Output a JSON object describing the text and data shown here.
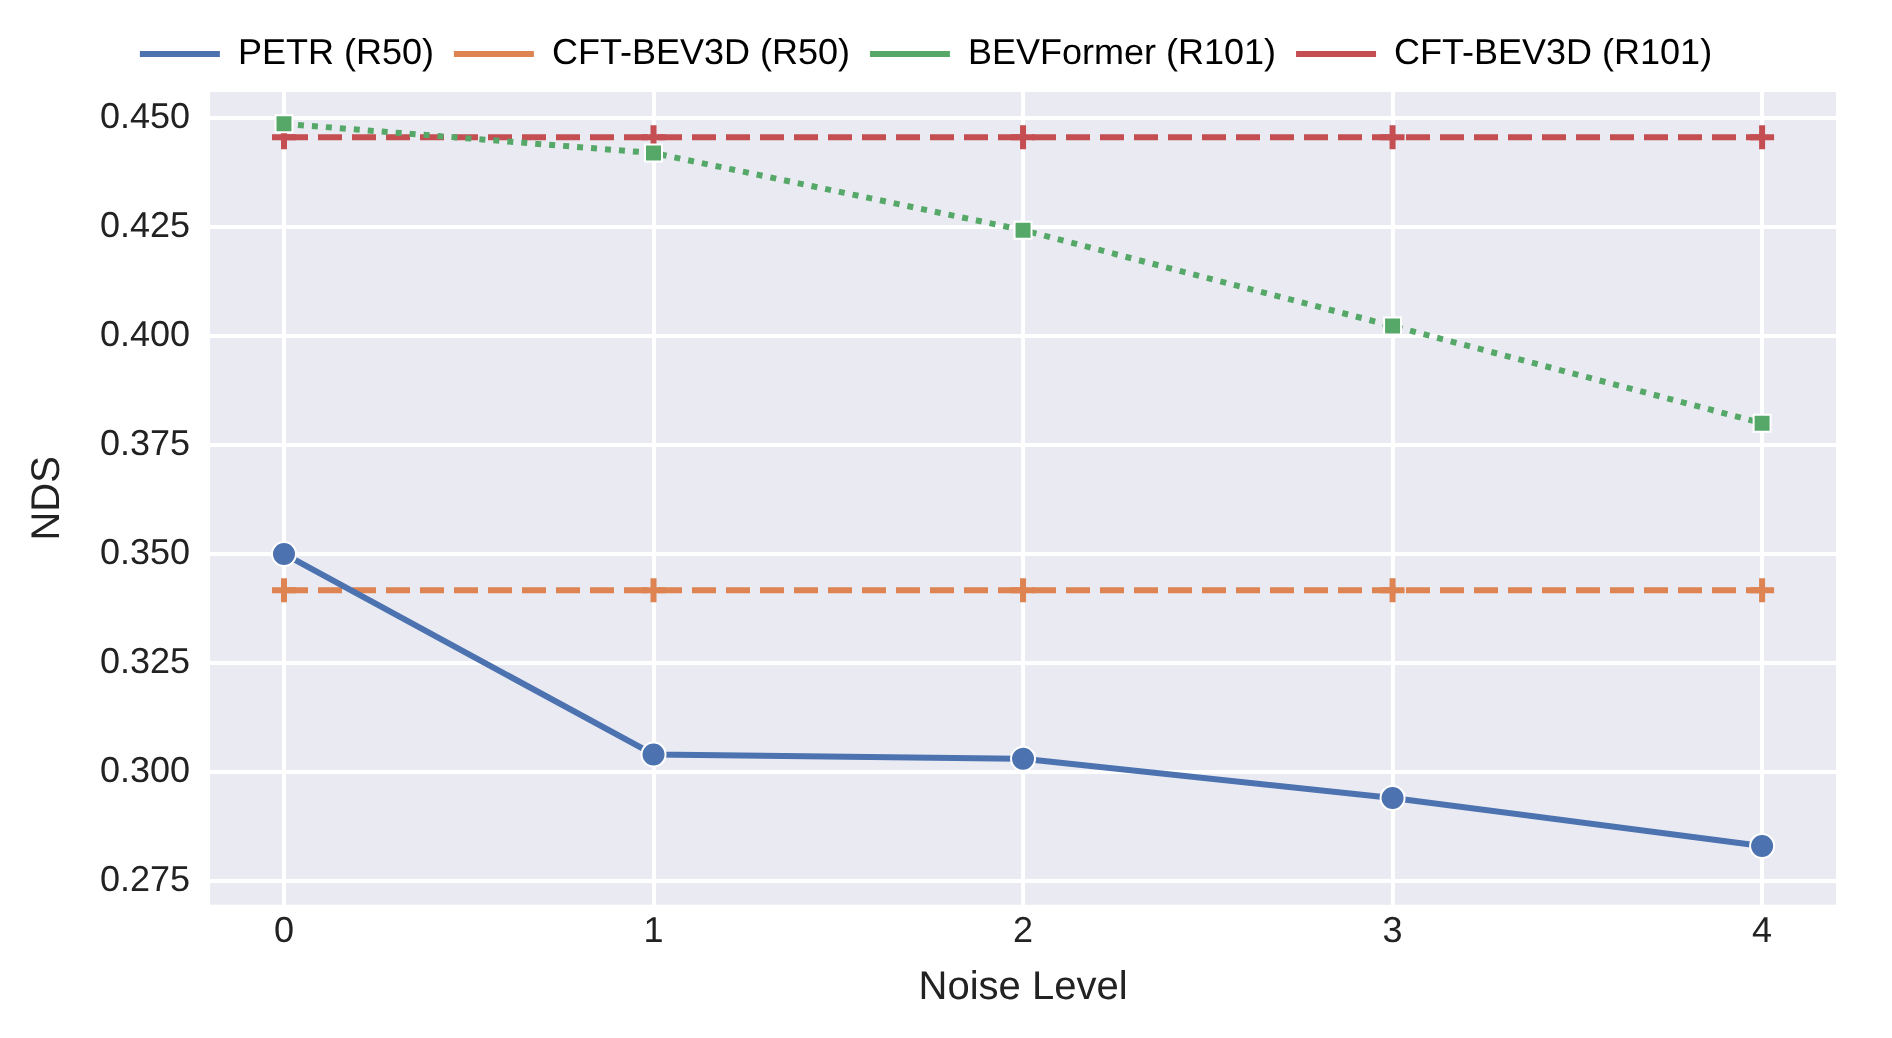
{
  "chart_data": {
    "type": "line",
    "xlabel": "Noise Level",
    "ylabel": "NDS",
    "x": [
      0,
      1,
      2,
      3,
      4
    ],
    "series": [
      {
        "name": "PETR (R50)",
        "color": "#4c72b0",
        "values": [
          0.35,
          0.304,
          0.303,
          0.294,
          0.283
        ],
        "marker": "circle",
        "line_style": "solid"
      },
      {
        "name": "CFT-BEV3D (R50)",
        "color": "#dd8452",
        "values": [
          0.3417,
          0.3417,
          0.3417,
          0.3417,
          0.3417
        ],
        "marker": "cross",
        "line_style": "dashed"
      },
      {
        "name": "BEVFormer (R101)",
        "color": "#55a868",
        "values": [
          0.4487,
          0.442,
          0.4243,
          0.4023,
          0.38
        ],
        "marker": "square",
        "line_style": "dotted"
      },
      {
        "name": "CFT-BEV3D (R101)",
        "color": "#c44e52",
        "values": [
          0.4456,
          0.4456,
          0.4456,
          0.4456,
          0.4456
        ],
        "marker": "cross",
        "line_style": "dashed"
      }
    ],
    "xlim": [
      -0.2,
      4.2
    ],
    "xticks": [
      0,
      1,
      2,
      3,
      4
    ],
    "ylim": [
      0.2695,
      0.456
    ],
    "yticks": [
      {
        "value": 0.275,
        "label": "0.275"
      },
      {
        "value": 0.3,
        "label": "0.300"
      },
      {
        "value": 0.325,
        "label": "0.325"
      },
      {
        "value": 0.35,
        "label": "0.350"
      },
      {
        "value": 0.375,
        "label": "0.375"
      },
      {
        "value": 0.4,
        "label": "0.400"
      },
      {
        "value": 0.425,
        "label": "0.425"
      },
      {
        "value": 0.45,
        "label": "0.450"
      }
    ],
    "grid": true,
    "legend": "top"
  }
}
